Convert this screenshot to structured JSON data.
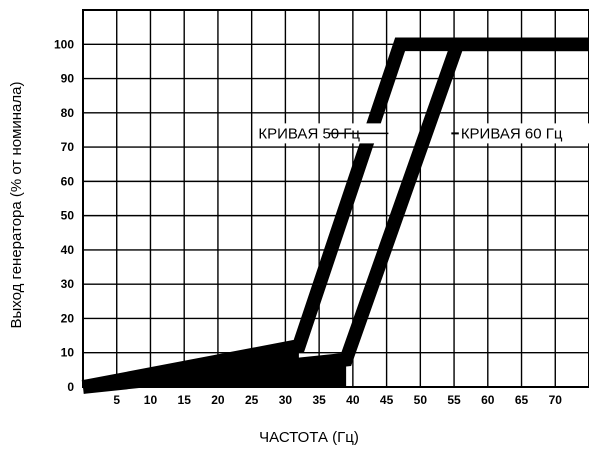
{
  "chart_data": {
    "type": "line",
    "title": "",
    "xlabel": "ЧАСТОТА (Гц)",
    "ylabel": "Выход генератора (% от номинала)",
    "xlim": [
      0,
      75
    ],
    "ylim": [
      0,
      110
    ],
    "grid": true,
    "x_ticks": [
      "5",
      "10",
      "15",
      "20",
      "25",
      "30",
      "35",
      "40",
      "45",
      "50",
      "55",
      "60",
      "65",
      "70"
    ],
    "y_ticks": [
      "0",
      "10",
      "20",
      "30",
      "40",
      "50",
      "60",
      "70",
      "80",
      "90",
      "100"
    ],
    "series": [
      {
        "name": "КРИВАЯ 50 Гц",
        "x": [
          0,
          32,
          47,
          75
        ],
        "y": [
          0,
          12,
          100,
          100
        ]
      },
      {
        "name": "КРИВАЯ 60 Гц",
        "x": [
          0,
          39,
          55.5,
          75
        ],
        "y": [
          0,
          8,
          100,
          100
        ]
      }
    ],
    "band_width_percent": 4,
    "annotations": [
      {
        "text": "КРИВАЯ 50 Гц",
        "x": 26,
        "y": 74,
        "arrow_to_x": 37,
        "arrow_to_y": 74
      },
      {
        "text": "КРИВАЯ 60 Гц",
        "x": 56,
        "y": 74,
        "arrow_to_x": 54,
        "arrow_to_y": 74
      }
    ],
    "colors": {
      "line": "#000000",
      "grid": "#000000",
      "background": "#ffffff"
    }
  }
}
